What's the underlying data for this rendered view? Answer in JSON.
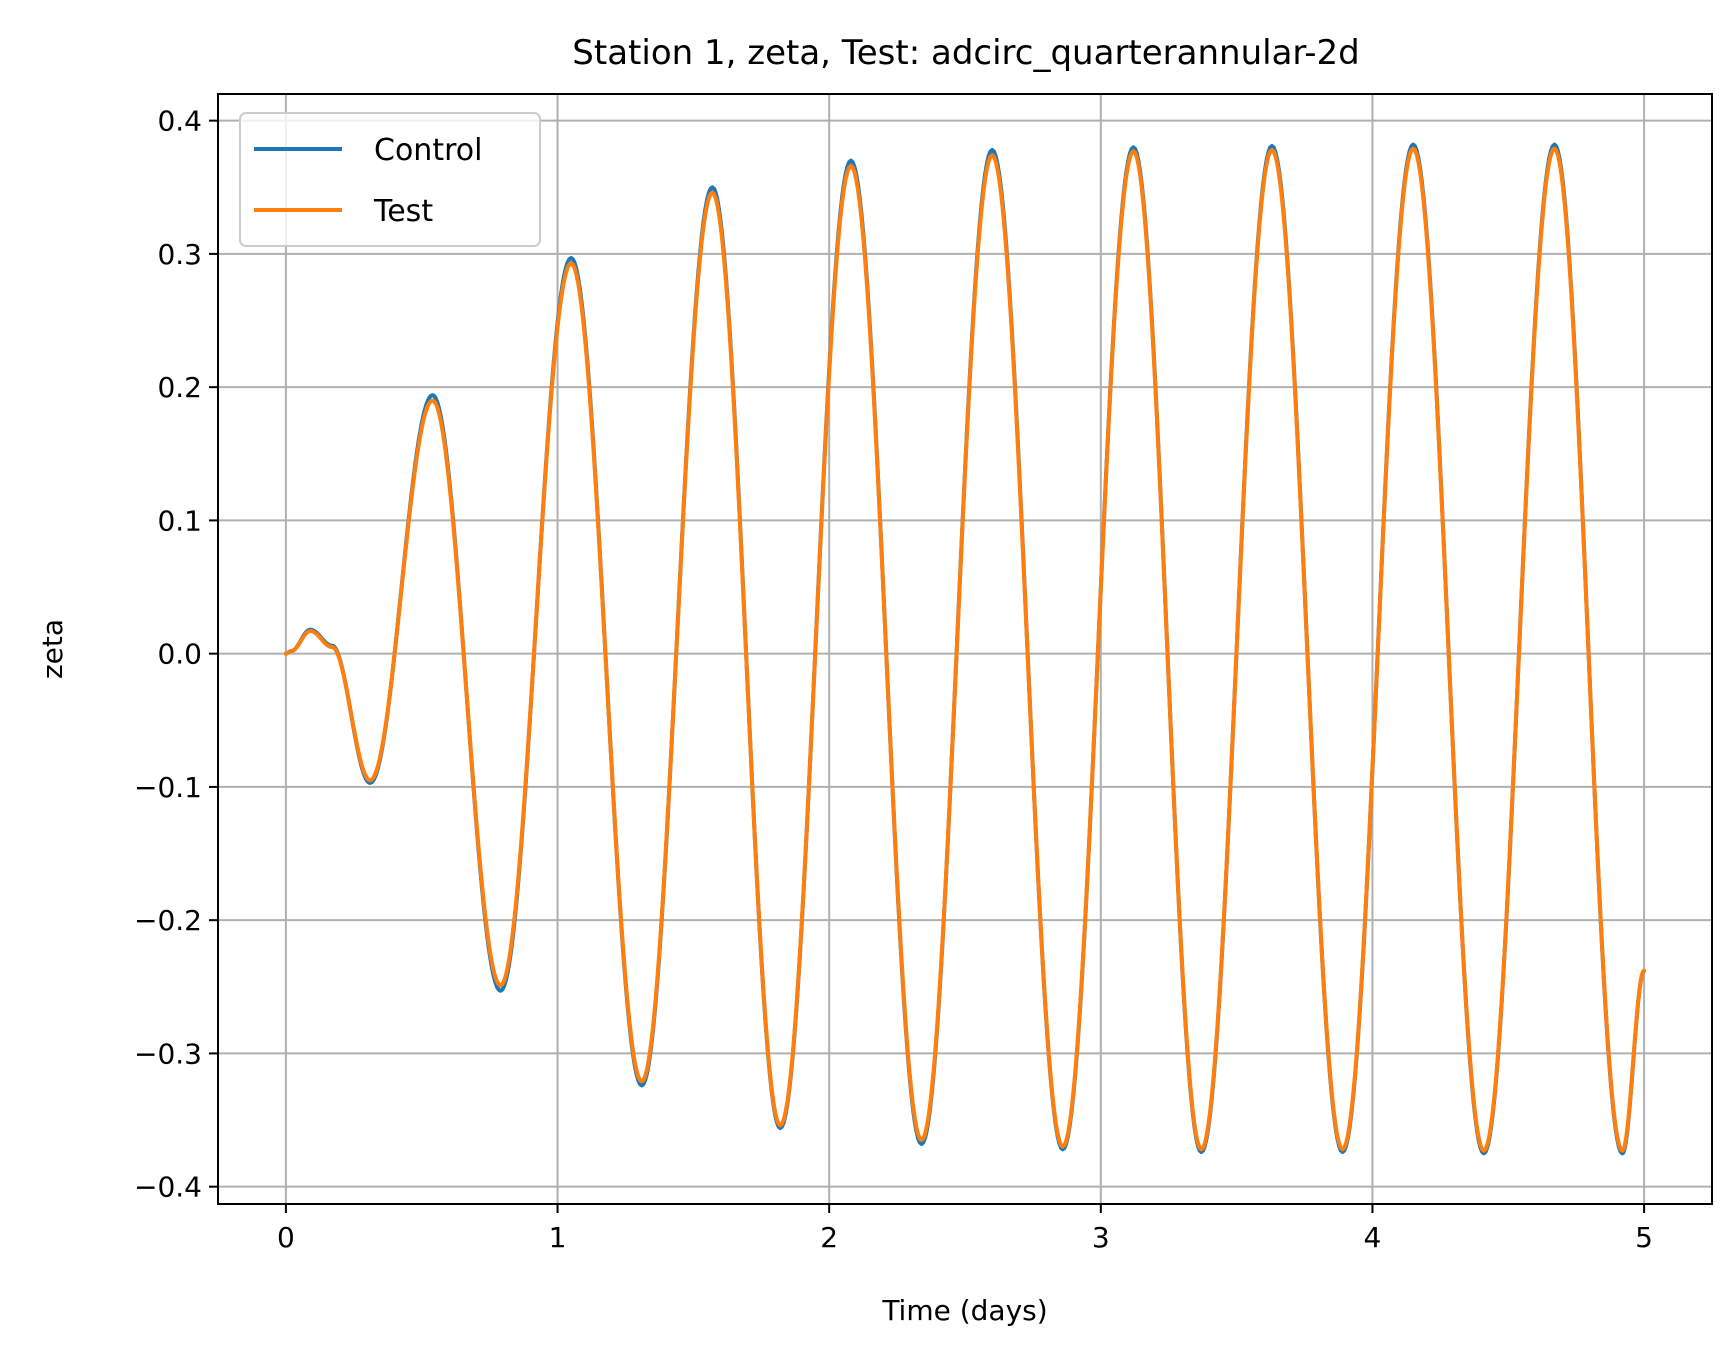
{
  "chart_data": {
    "type": "line",
    "title": "Station 1, zeta, Test: adcirc_quarterannular-2d",
    "xlabel": "Time (days)",
    "ylabel": "zeta",
    "xlim": [
      -0.25,
      5.25
    ],
    "ylim": [
      -0.413,
      0.42
    ],
    "xticks": [
      0,
      1,
      2,
      3,
      4,
      5
    ],
    "xtick_labels": [
      "0",
      "1",
      "2",
      "3",
      "4",
      "5"
    ],
    "yticks": [
      -0.4,
      -0.3,
      -0.2,
      -0.1,
      0.0,
      0.1,
      0.2,
      0.3,
      0.4
    ],
    "ytick_labels": [
      "−0.4",
      "−0.3",
      "−0.2",
      "−0.1",
      "0.0",
      "0.1",
      "0.2",
      "0.3",
      "0.4"
    ],
    "grid": true,
    "legend_position": "top-left",
    "series": [
      {
        "name": "Control",
        "color": "#1f77b4",
        "x": [
          0.0,
          0.02,
          0.09,
          0.17,
          0.31,
          0.54,
          0.79,
          1.05,
          1.31,
          1.57,
          1.82,
          2.08,
          2.34,
          2.6,
          2.86,
          3.12,
          3.37,
          3.63,
          3.89,
          4.15,
          4.41,
          4.67,
          4.92,
          5.0
        ],
        "y": [
          0.0,
          0.002,
          0.018,
          0.006,
          -0.097,
          0.194,
          -0.253,
          0.297,
          -0.324,
          0.35,
          -0.356,
          0.37,
          -0.368,
          0.378,
          -0.372,
          0.38,
          -0.374,
          0.381,
          -0.374,
          0.382,
          -0.375,
          0.382,
          -0.375,
          -0.238
        ]
      },
      {
        "name": "Test",
        "color": "#ff7f0e",
        "x": [
          0.0,
          0.02,
          0.09,
          0.17,
          0.31,
          0.54,
          0.79,
          1.05,
          1.31,
          1.57,
          1.82,
          2.08,
          2.34,
          2.6,
          2.86,
          3.12,
          3.37,
          3.63,
          3.89,
          4.15,
          4.41,
          4.67,
          4.92,
          5.0
        ],
        "y": [
          0.0,
          0.002,
          0.017,
          0.005,
          -0.095,
          0.19,
          -0.249,
          0.293,
          -0.321,
          0.346,
          -0.354,
          0.366,
          -0.365,
          0.374,
          -0.37,
          0.377,
          -0.372,
          0.378,
          -0.372,
          0.379,
          -0.373,
          0.379,
          -0.373,
          -0.238
        ]
      }
    ]
  }
}
